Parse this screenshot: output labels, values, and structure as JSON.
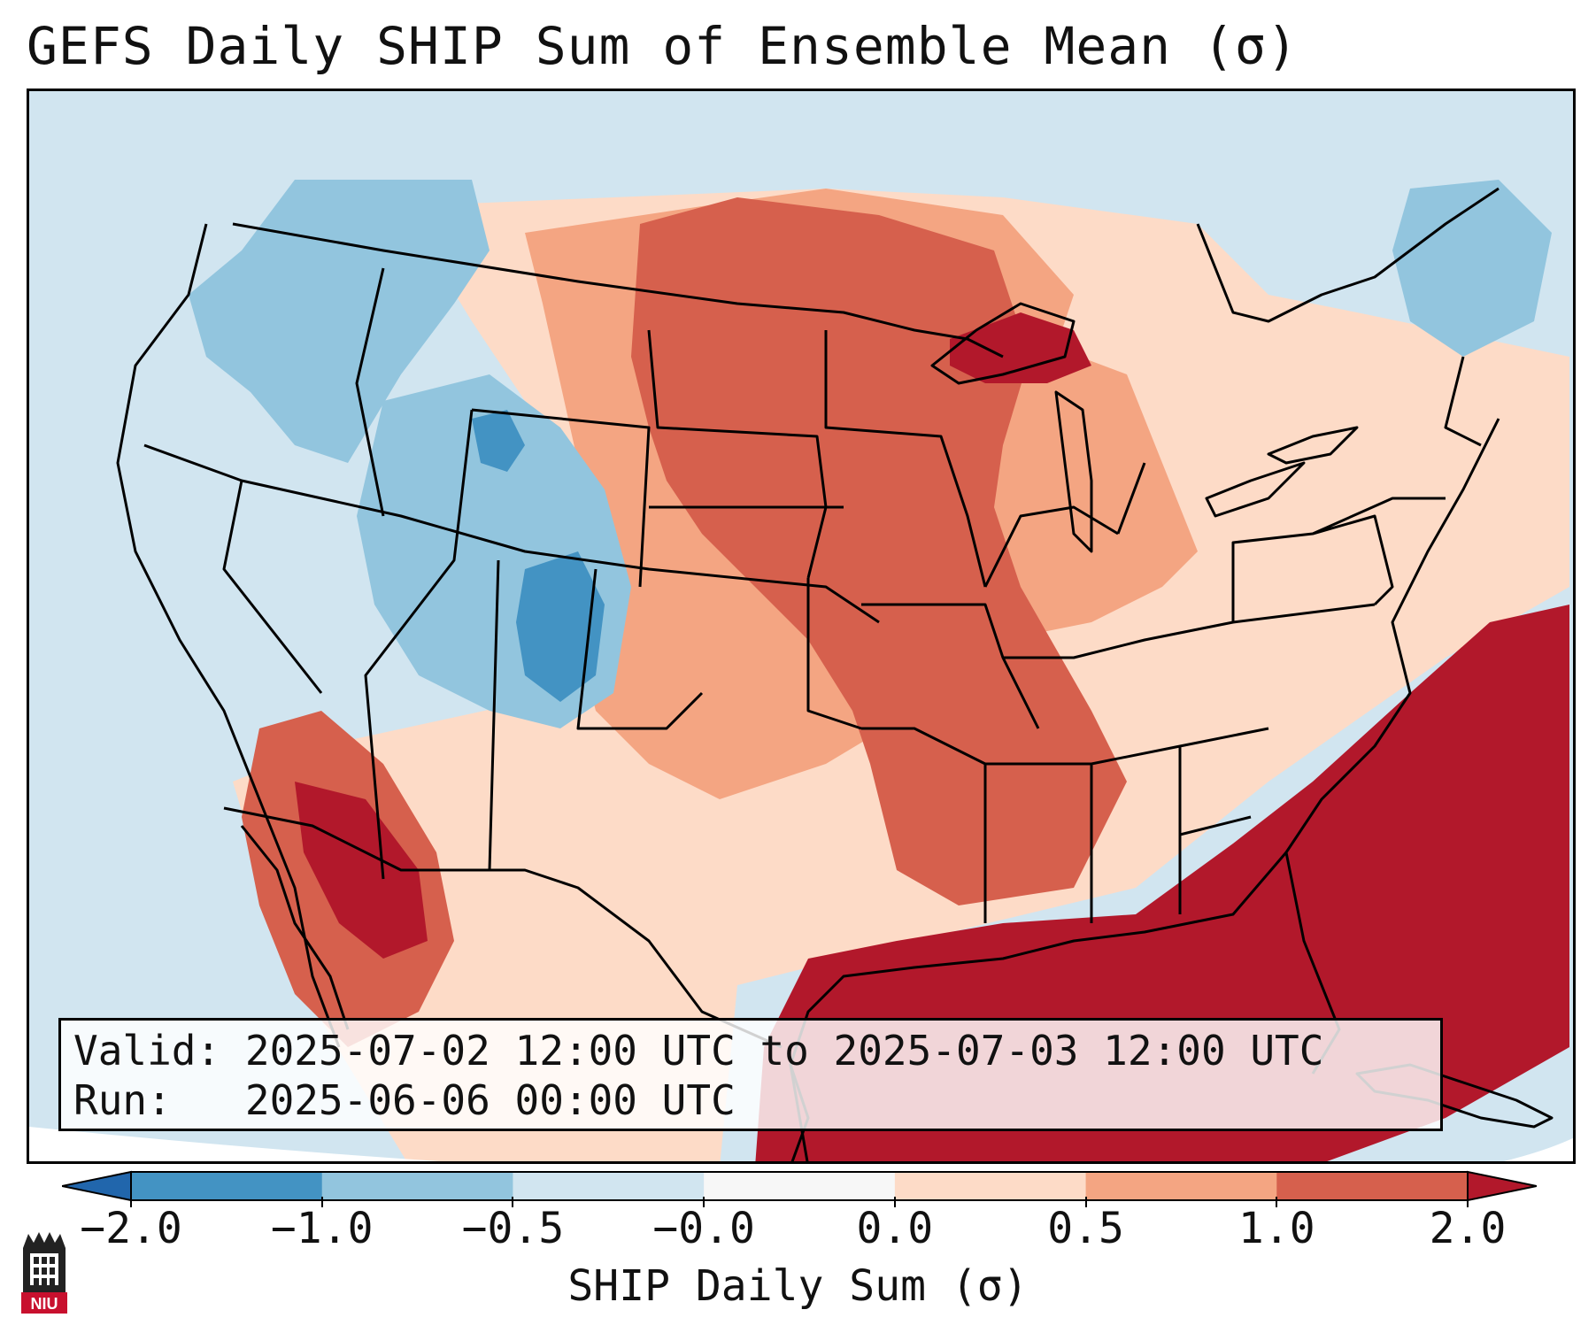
{
  "title": "GEFS Daily SHIP Sum of Ensemble Mean (σ)",
  "info": {
    "valid_label": "Valid:",
    "valid_value": "2025-07-02 12:00 UTC to 2025-07-03 12:00 UTC",
    "run_label": "Run:",
    "run_value": "2025-06-06 00:00 UTC"
  },
  "colorbar": {
    "label": "SHIP Daily Sum (σ)",
    "ticks": [
      "-2.0",
      "-1.0",
      "-0.5",
      "-0.0",
      "0.0",
      "0.5",
      "1.0",
      "2.0"
    ],
    "colors": [
      "#4393c3",
      "#92c5de",
      "#d1e5f0",
      "#f7f7f7",
      "#fddbc7",
      "#f4a582",
      "#d6604d"
    ],
    "under_color": "#2166ac",
    "over_color": "#b2182b"
  },
  "palette": {
    "strong_neg": "#4393c3",
    "neg": "#92c5de",
    "weak_neg": "#d1e5f0",
    "weak_pos": "#fddbc7",
    "pos": "#f4a582",
    "strong_pos": "#d6604d",
    "extreme_pos": "#b2182b"
  },
  "logo_text": "NIU"
}
